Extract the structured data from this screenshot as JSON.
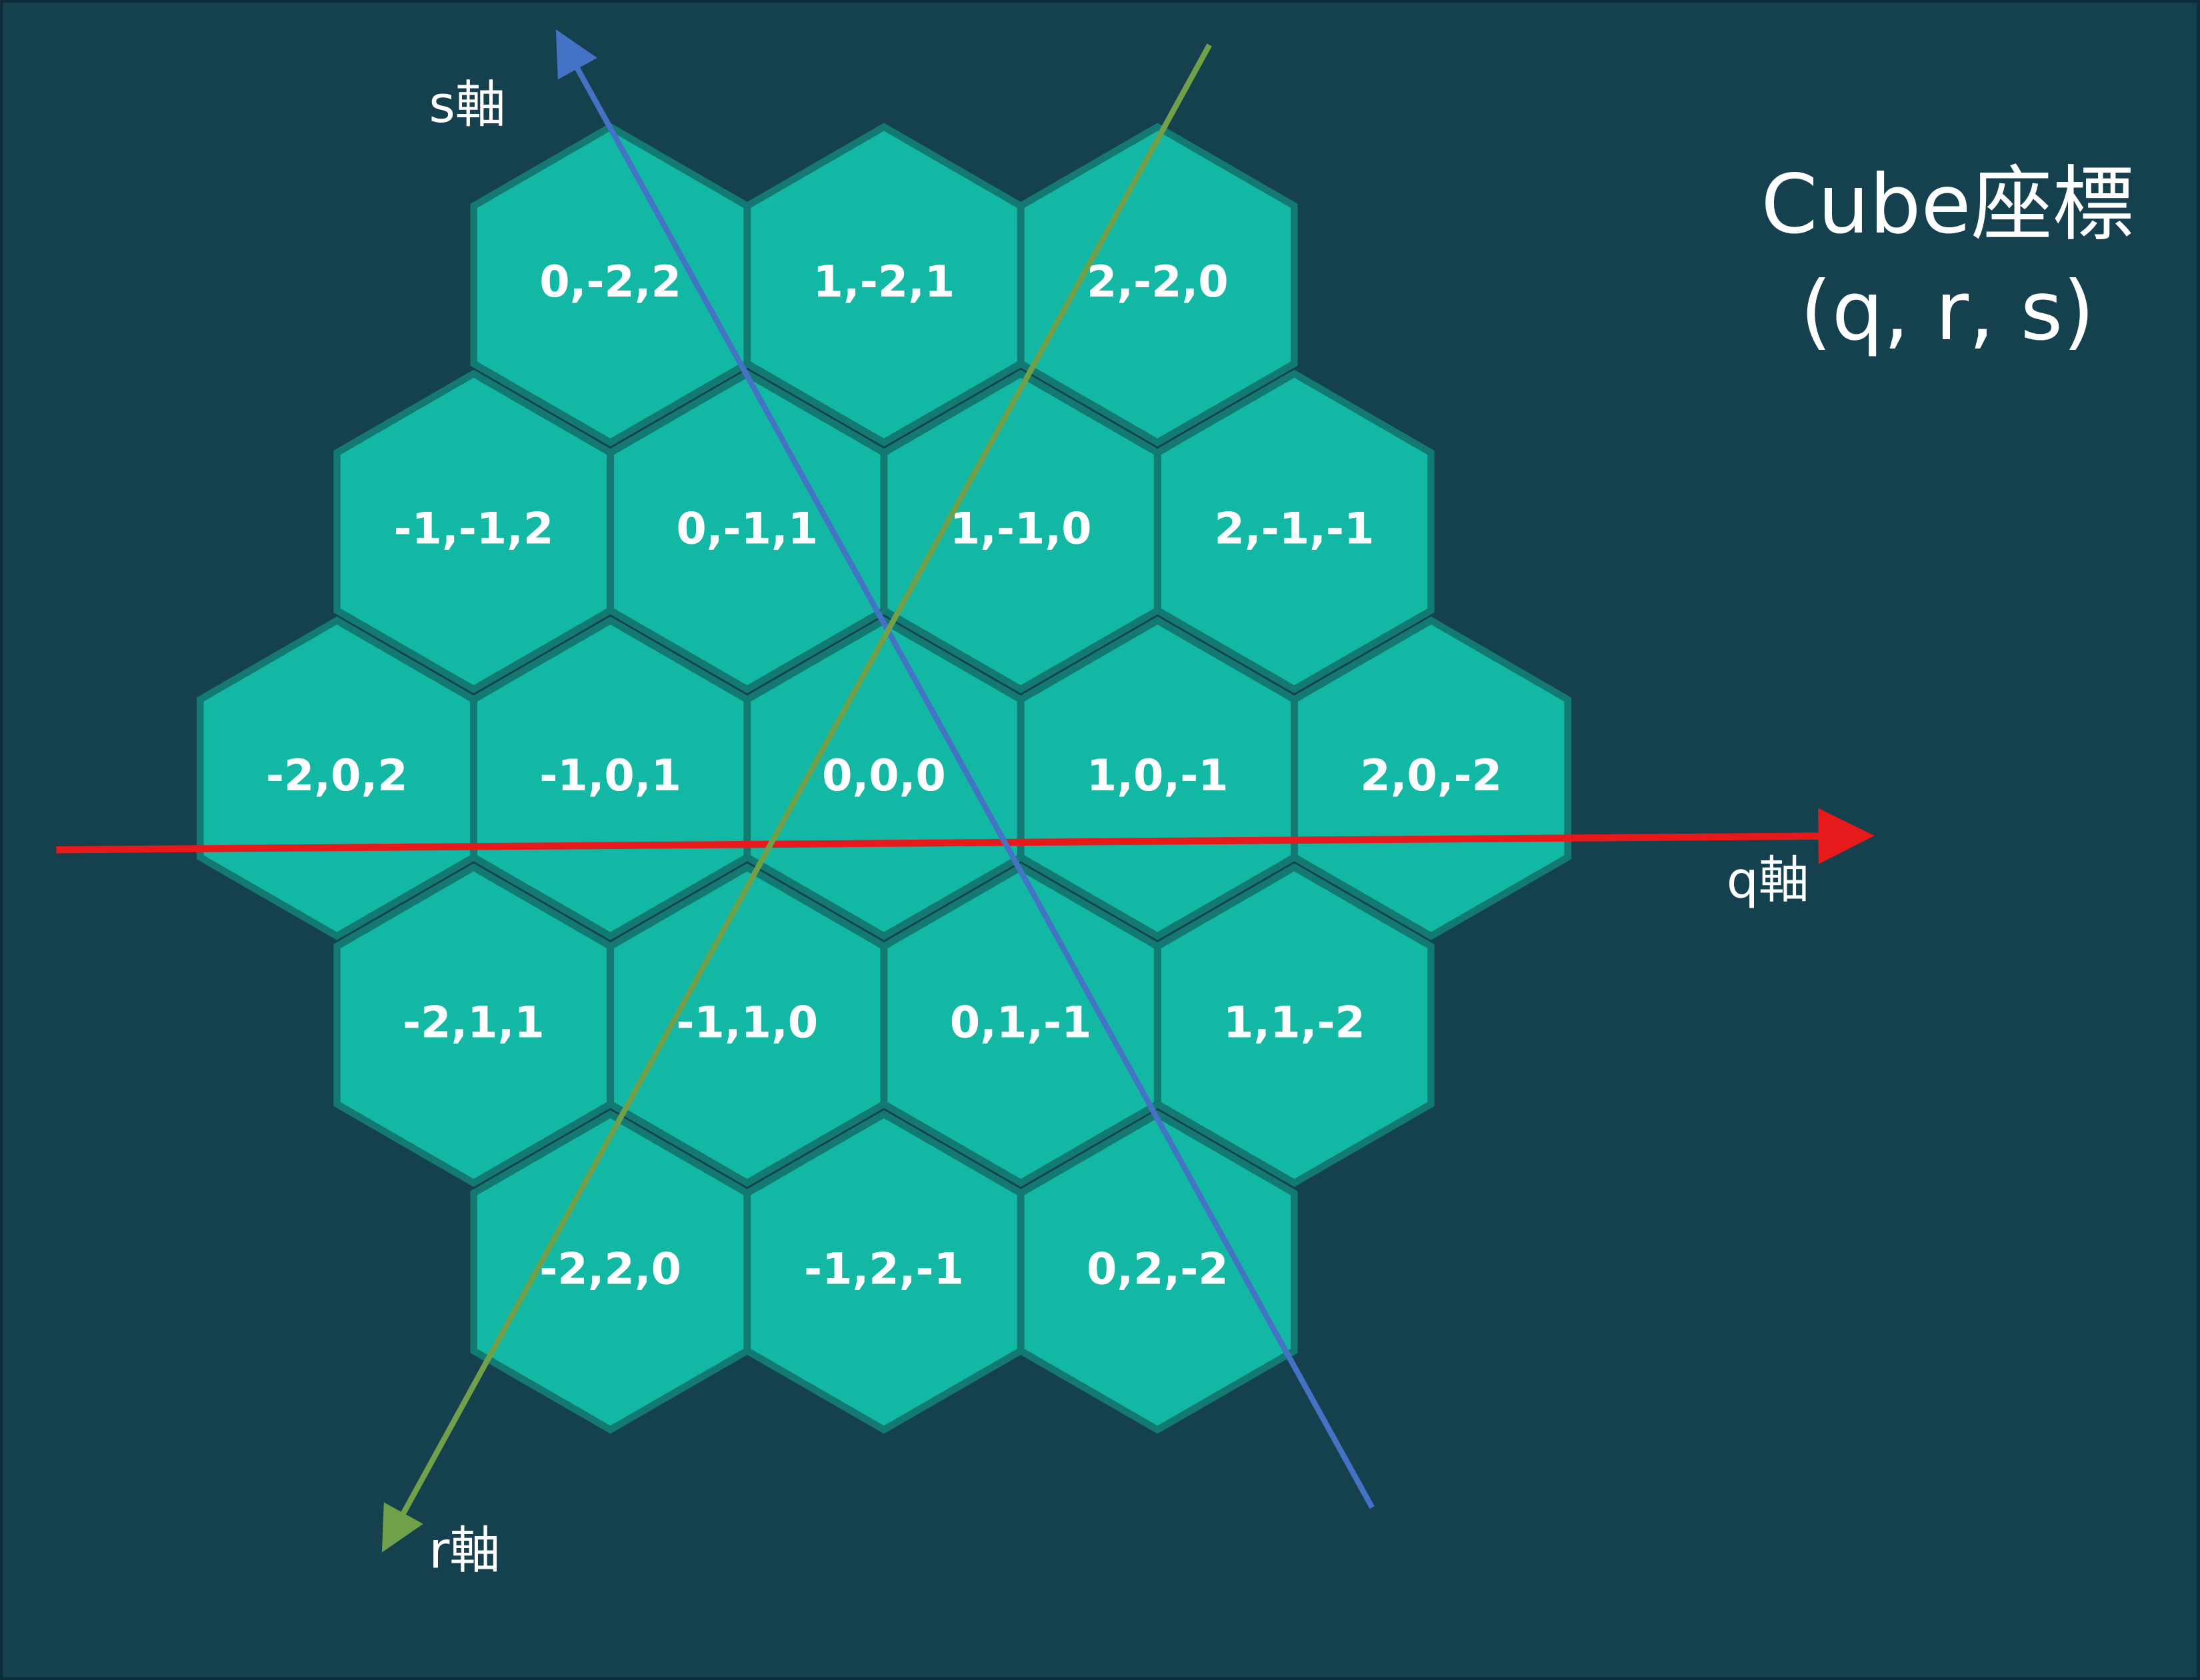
{
  "title": {
    "line1": "Cube座標",
    "line2": "(q, r, s)"
  },
  "axes": {
    "q": "q軸",
    "r": "r軸",
    "s": "s軸"
  },
  "hex_rows": [
    [
      "0,-2,2",
      "1,-2,1",
      "2,-2,0"
    ],
    [
      "-1,-1,2",
      "0,-1,1",
      "1,-1,0",
      "2,-1,-1"
    ],
    [
      "-2,0,2",
      "-1,0,1",
      "0,0,0",
      "1,0,-1",
      "2,0,-2"
    ],
    [
      "-2,1,1",
      "-1,1,0",
      "0,1,-1",
      "1,1,-2"
    ],
    [
      "-2,2,0",
      "-1,2,-1",
      "0,2,-2"
    ]
  ]
}
